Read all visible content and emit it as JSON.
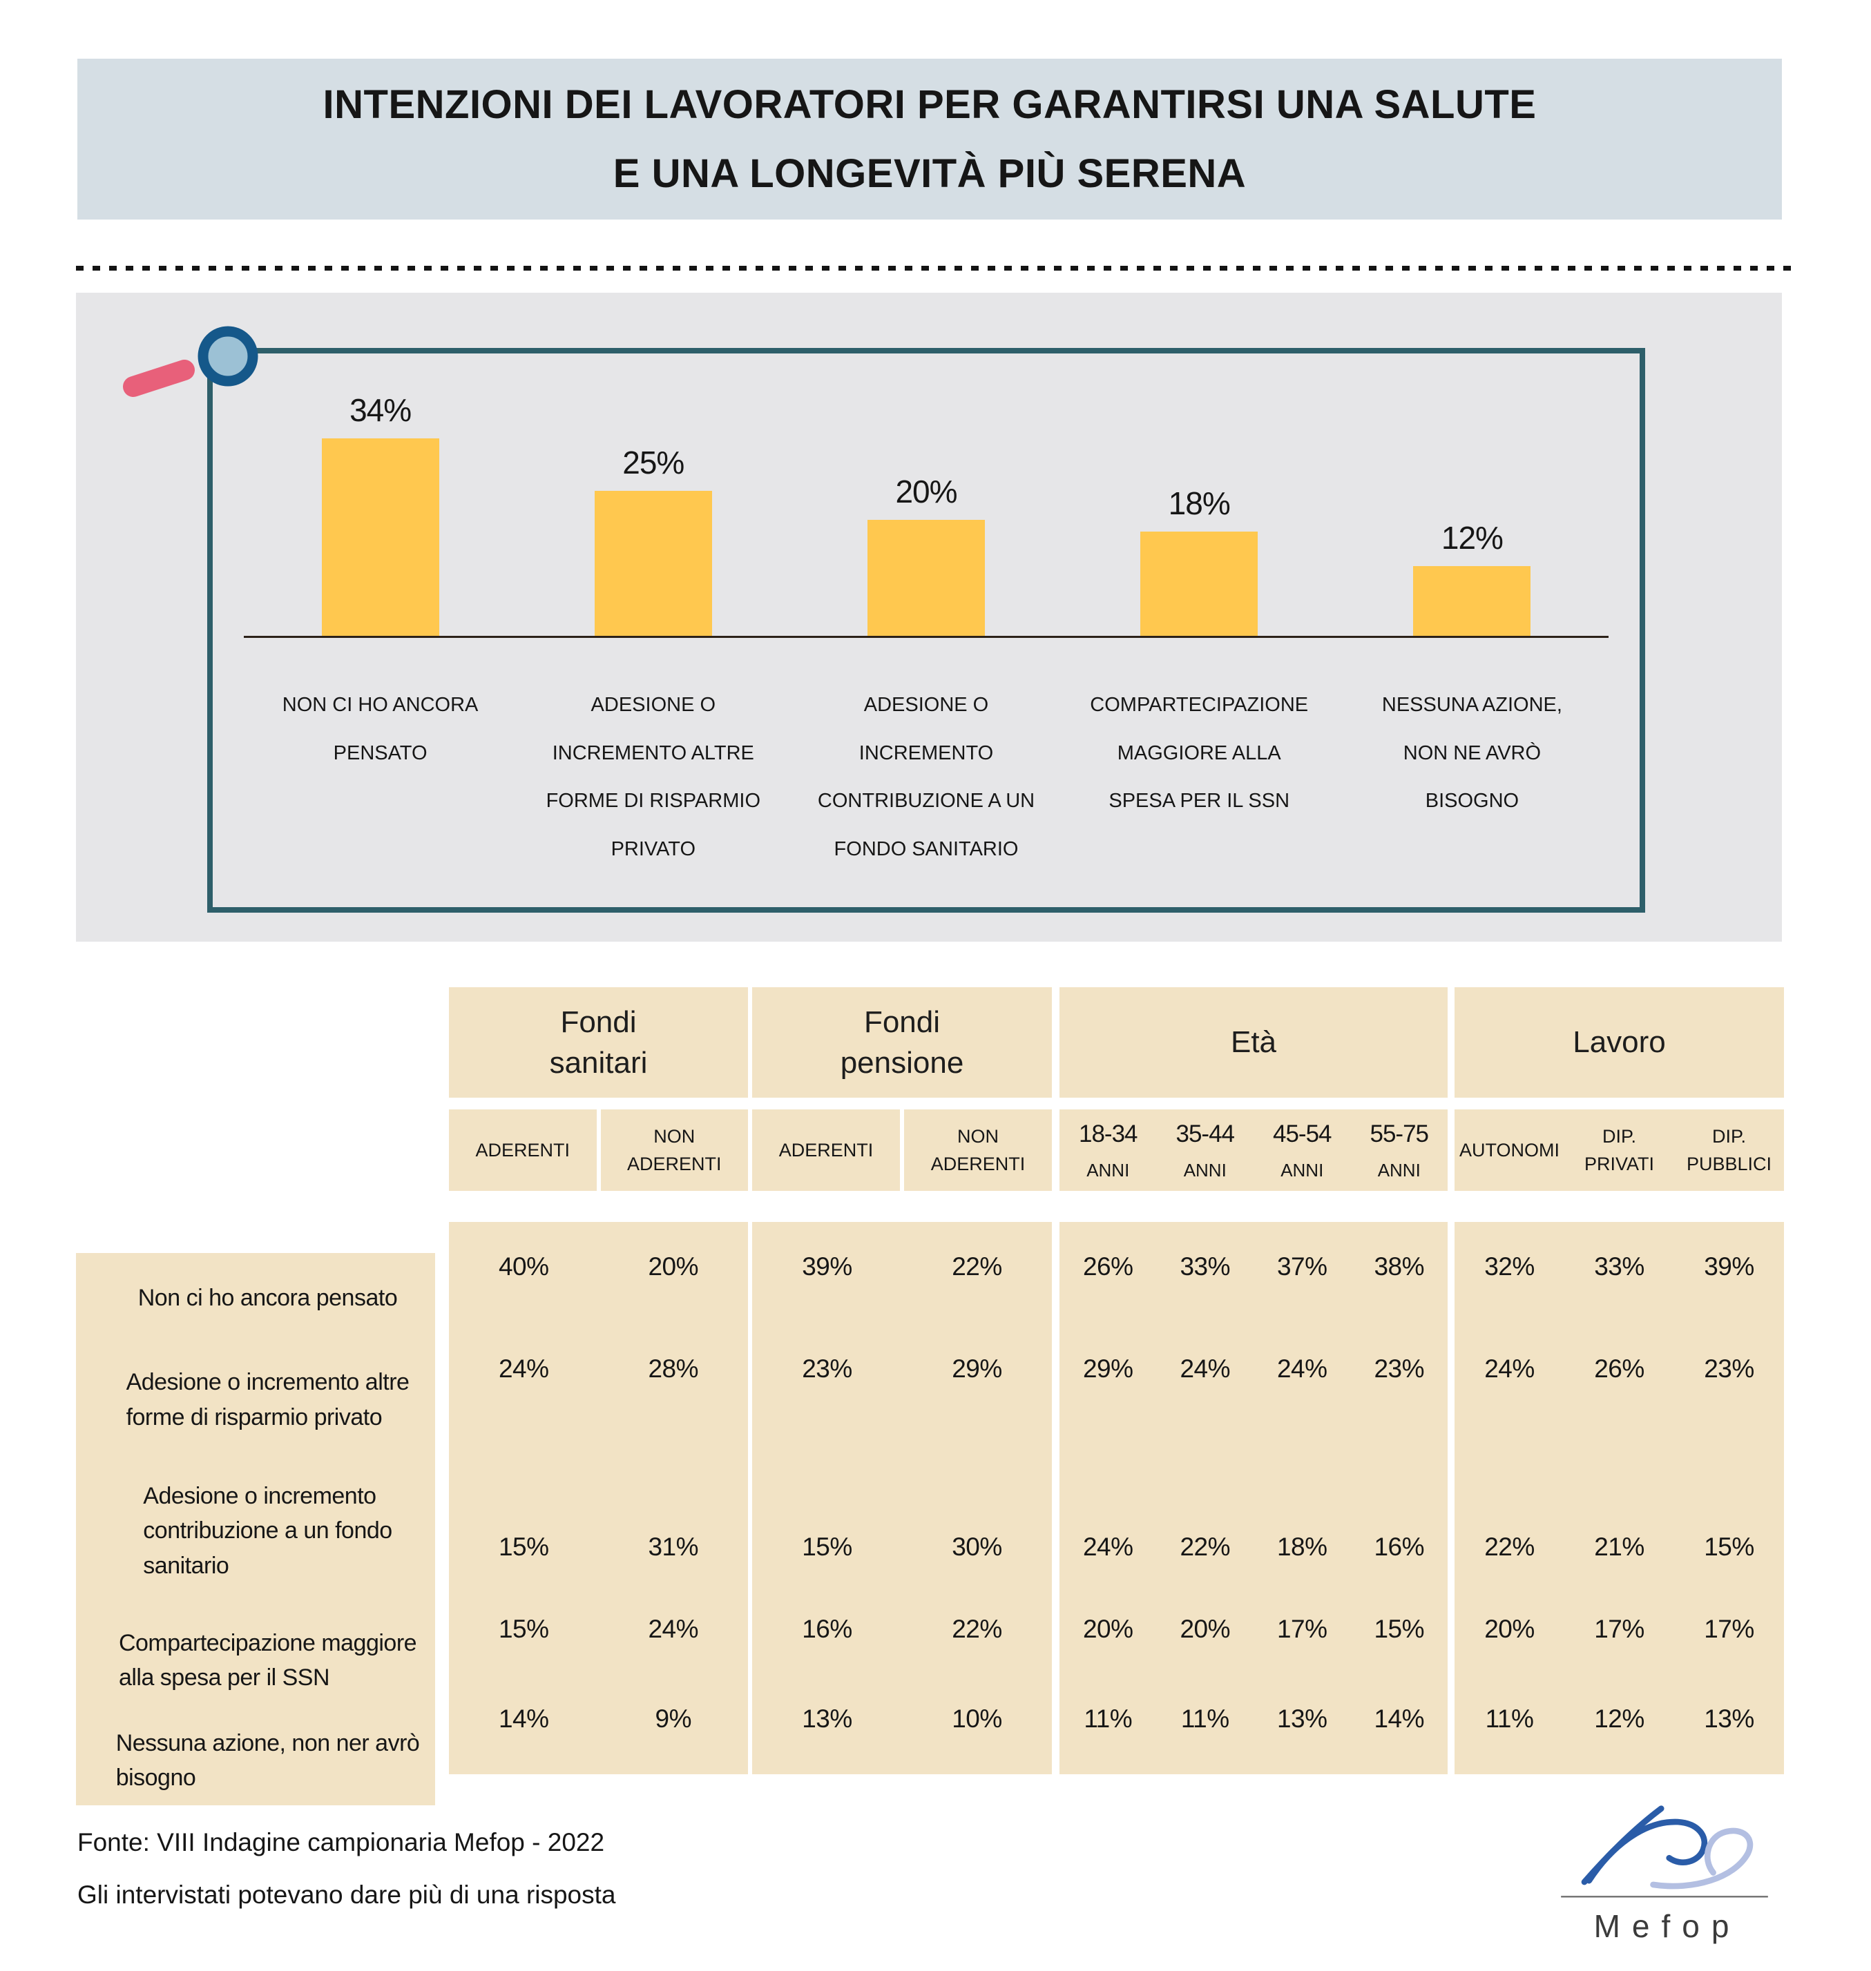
{
  "title": {
    "lines": [
      "INTENZIONI DEI LAVORATORI PER GARANTIRSI UNA SALUTE",
      "E UNA LONGEVITÀ PIÙ SERENA"
    ]
  },
  "chart": {
    "bars": [
      {
        "value": "34%",
        "label": [
          "NON CI HO ANCORA",
          "PENSATO"
        ]
      },
      {
        "value": "25%",
        "label": [
          "ADESIONE O",
          "INCREMENTO ALTRE",
          "FORME DI RISPARMIO",
          "PRIVATO"
        ]
      },
      {
        "value": "20%",
        "label": [
          "ADESIONE O",
          "INCREMENTO",
          "CONTRIBUZIONE A UN",
          "FONDO SANITARIO"
        ]
      },
      {
        "value": "18%",
        "label": [
          "COMPARTECIPAZIONE",
          "MAGGIORE ALLA",
          "SPESA PER IL SSN"
        ]
      },
      {
        "value": "12%",
        "label": [
          "NESSUNA AZIONE,",
          "NON NE AVRÒ",
          "BISOGNO"
        ]
      }
    ]
  },
  "table": {
    "groups": [
      {
        "label": [
          "Fondi",
          "sanitari"
        ]
      },
      {
        "label": [
          "Fondi",
          "pensione"
        ]
      },
      {
        "label": [
          "Età"
        ]
      },
      {
        "label": [
          "Lavoro"
        ]
      }
    ],
    "sub": {
      "fs_aderenti": "ADERENTI",
      "fs_non_aderenti": [
        "NON",
        "ADERENTI"
      ],
      "fp_aderenti": "ADERENTI",
      "fp_non_aderenti": [
        "NON",
        "ADERENTI"
      ],
      "eta": [
        {
          "range": "18-34",
          "unit": "ANNI"
        },
        {
          "range": "35-44",
          "unit": "ANNI"
        },
        {
          "range": "45-54",
          "unit": "ANNI"
        },
        {
          "range": "55-75",
          "unit": "ANNI"
        }
      ],
      "lavoro": [
        {
          "line1": "AUTONOMI",
          "line2": ""
        },
        {
          "line1": "DIP.",
          "line2": "PRIVATI"
        },
        {
          "line1": "DIP.",
          "line2": "PUBBLICI"
        }
      ]
    },
    "rows": [
      {
        "label": [
          "Non ci ho ancora pensato"
        ],
        "fs": [
          "40%",
          "20%"
        ],
        "fp": [
          "39%",
          "22%"
        ],
        "eta": [
          "26%",
          "33%",
          "37%",
          "38%"
        ],
        "lavoro": [
          "32%",
          "33%",
          "39%"
        ]
      },
      {
        "label": [
          "Adesione o incremento altre",
          "forme di risparmio privato"
        ],
        "fs": [
          "24%",
          "28%"
        ],
        "fp": [
          "23%",
          "29%"
        ],
        "eta": [
          "29%",
          "24%",
          "24%",
          "23%"
        ],
        "lavoro": [
          "24%",
          "26%",
          "23%"
        ]
      },
      {
        "label": [
          "Adesione o incremento",
          "contribuzione a un fondo",
          "sanitario"
        ],
        "fs": [
          "15%",
          "31%"
        ],
        "fp": [
          "15%",
          "30%"
        ],
        "eta": [
          "24%",
          "22%",
          "18%",
          "16%"
        ],
        "lavoro": [
          "22%",
          "21%",
          "15%"
        ]
      },
      {
        "label": [
          "Compartecipazione maggiore",
          "alla spesa per il SSN"
        ],
        "fs": [
          "15%",
          "24%"
        ],
        "fp": [
          "16%",
          "22%"
        ],
        "eta": [
          "20%",
          "20%",
          "17%",
          "15%"
        ],
        "lavoro": [
          "20%",
          "17%",
          "17%"
        ]
      },
      {
        "label": [
          "Nessuna azione, non ner avrò",
          "bisogno"
        ],
        "fs": [
          "14%",
          "9%"
        ],
        "fp": [
          "13%",
          "10%"
        ],
        "eta": [
          "11%",
          "11%",
          "13%",
          "14%"
        ],
        "lavoro": [
          "11%",
          "12%",
          "13%"
        ]
      }
    ]
  },
  "footer": {
    "line1": "Fonte: VIII Indagine campionaria Mefop - 2022",
    "line2": "Gli intervistati potevano dare più di una risposta"
  },
  "logo": {
    "text": "Mefop"
  },
  "colors": {
    "banner_bg": "#d5dee4",
    "panel_bg": "#e6e6e8",
    "bar_yellow": "#ffc84f",
    "frame_teal": "#2e5f6a",
    "table_beige": "#f2e3c5",
    "text": "#161616",
    "magnifier_ring": "#15588a",
    "magnifier_lens": "#9cc1d5",
    "magnifier_handle": "#e8607a",
    "logo_dark_blue": "#2a5ca8",
    "logo_light_blue": "#b3bfe2"
  },
  "chart_data": [
    {
      "type": "bar",
      "title": "INTENZIONI DEI LAVORATORI PER GARANTIRSI UNA SALUTE E UNA LONGEVITÀ PIÙ SERENA",
      "categories": [
        "Non ci ho ancora pensato",
        "Adesione o incremento altre forme di risparmio privato",
        "Adesione o incremento contribuzione a un fondo sanitario",
        "Compartecipazione maggiore alla spesa per il SSN",
        "Nessuna azione, non ne avrò bisogno"
      ],
      "values": [
        34,
        25,
        20,
        18,
        12
      ],
      "unit": "%",
      "xlabel": "",
      "ylabel": "",
      "ylim": [
        0,
        40
      ],
      "grid": false,
      "legend": false,
      "bar_color": "#ffc84f"
    },
    {
      "type": "table",
      "column_groups": [
        "Fondi sanitari",
        "Fondi pensione",
        "Età",
        "Lavoro"
      ],
      "columns": [
        "Fondi sanitari - Aderenti",
        "Fondi sanitari - Non aderenti",
        "Fondi pensione - Aderenti",
        "Fondi pensione - Non aderenti",
        "Età 18-34 anni",
        "Età 35-44 anni",
        "Età 45-54 anni",
        "Età 55-75 anni",
        "Lavoro - Autonomi",
        "Lavoro - Dip. privati",
        "Lavoro - Dip. pubblici"
      ],
      "unit": "%",
      "rows": [
        {
          "label": "Non ci ho ancora pensato",
          "values": [
            40,
            20,
            39,
            22,
            26,
            33,
            37,
            38,
            32,
            33,
            39
          ]
        },
        {
          "label": "Adesione o incremento altre forme di risparmio privato",
          "values": [
            24,
            28,
            23,
            29,
            29,
            24,
            24,
            23,
            24,
            26,
            23
          ]
        },
        {
          "label": "Adesione o incremento contribuzione a un fondo sanitario",
          "values": [
            15,
            31,
            15,
            30,
            24,
            22,
            18,
            16,
            22,
            21,
            15
          ]
        },
        {
          "label": "Compartecipazione maggiore alla spesa per il SSN",
          "values": [
            15,
            24,
            16,
            22,
            20,
            20,
            17,
            15,
            20,
            17,
            17
          ]
        },
        {
          "label": "Nessuna azione, non ner avrò bisogno",
          "values": [
            14,
            9,
            13,
            10,
            11,
            11,
            13,
            14,
            11,
            12,
            13
          ]
        }
      ]
    }
  ]
}
